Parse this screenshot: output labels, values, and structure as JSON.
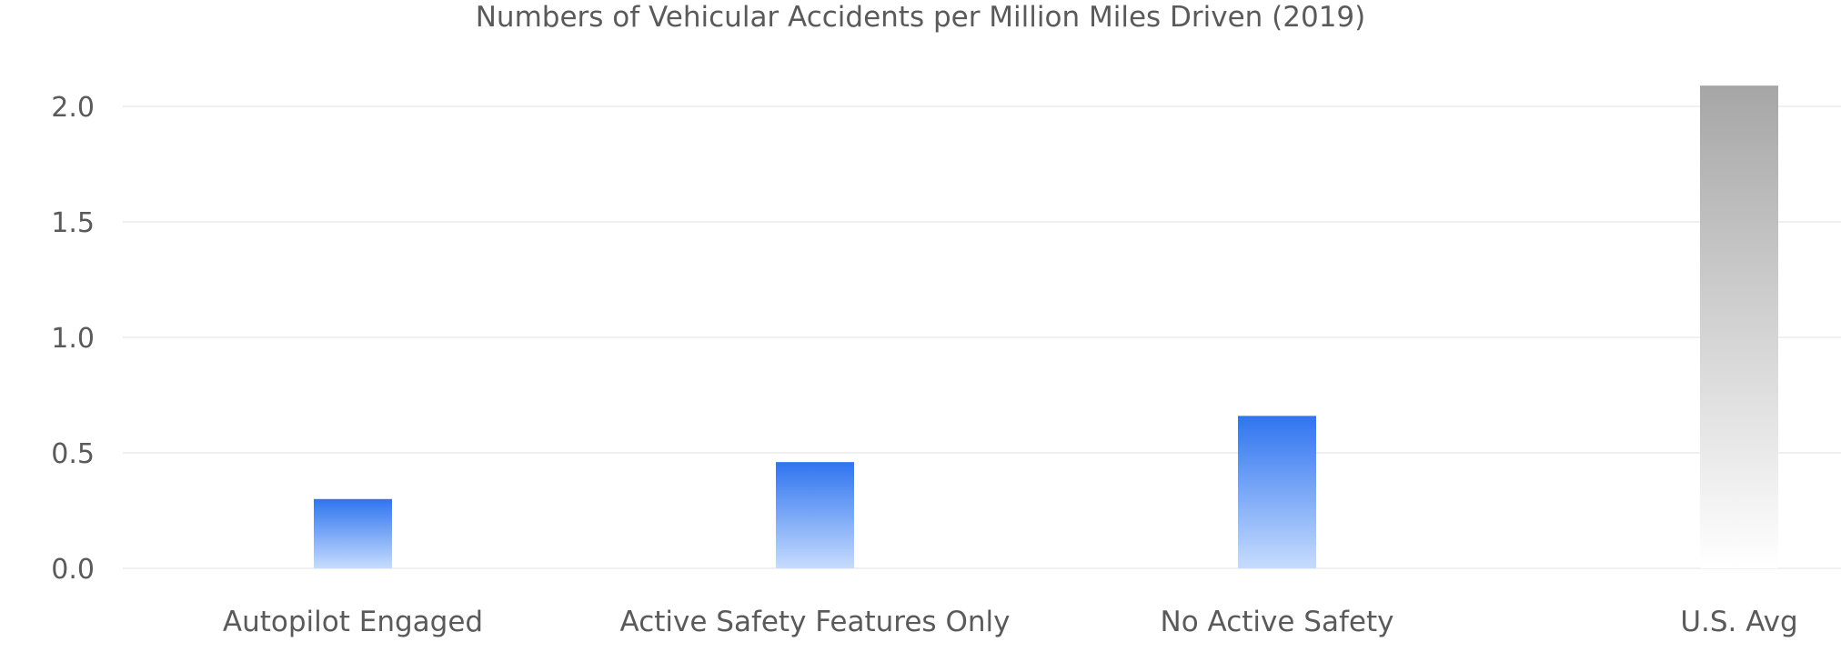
{
  "chart_data": {
    "type": "bar",
    "title": "Numbers of Vehicular Accidents per Million Miles Driven (2019)",
    "categories": [
      "Autopilot Engaged",
      "Active Safety Features Only",
      "No Active Safety",
      "U.S. Avg"
    ],
    "values": [
      0.3,
      0.46,
      0.66,
      2.09
    ],
    "xlabel": "",
    "ylabel": "",
    "ylim": [
      0,
      2.0
    ],
    "yticks": [
      "0.0",
      "0.5",
      "1.0",
      "1.5",
      "2.0"
    ],
    "grid": true,
    "legend": "none",
    "colors": {
      "bar_top": "#2f74f0",
      "bar_bottom": "#c6dcfd",
      "avg_top": "#a6a6a6",
      "avg_bottom": "#ffffff",
      "grid": "#ececec",
      "text": "#5a5a5a"
    }
  }
}
